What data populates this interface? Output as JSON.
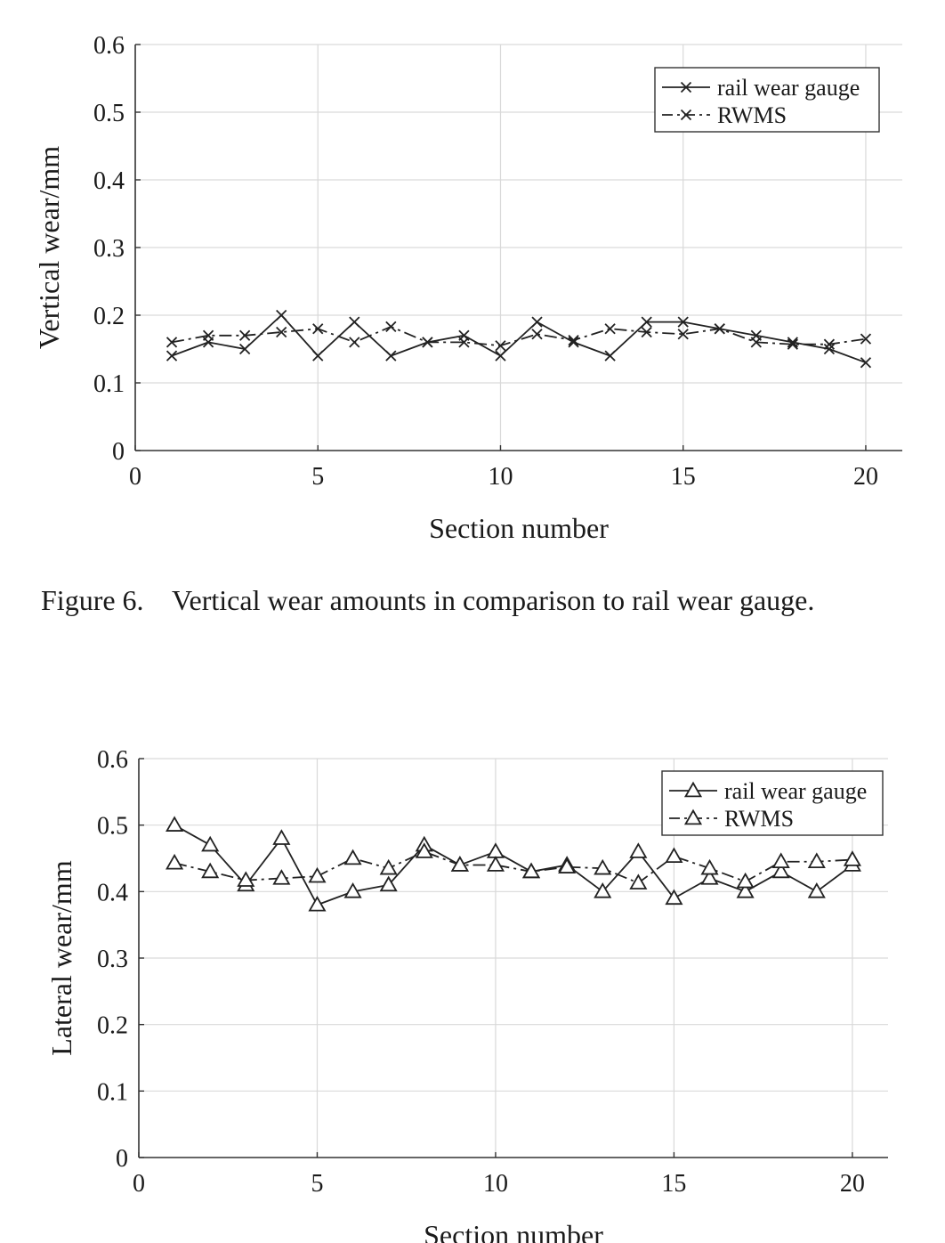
{
  "figure_caption": "Figure 6.    Vertical wear amounts in comparison to rail wear gauge.",
  "colors": {
    "line": "#222222",
    "grid": "#d9d9d9",
    "axis": "#333333"
  },
  "chart_data": [
    {
      "type": "line",
      "title": "",
      "xlabel": "Section number",
      "ylabel": "Vertical wear/mm",
      "xlim": [
        0,
        21
      ],
      "ylim": [
        0,
        0.6
      ],
      "xticks": [
        0,
        5,
        10,
        15,
        20
      ],
      "yticks": [
        0,
        0.1,
        0.2,
        0.3,
        0.4,
        0.5,
        0.6
      ],
      "ytick_labels": [
        "0",
        "0.1",
        "0.2",
        "0.3",
        "0.4",
        "0.5",
        "0.6"
      ],
      "grid": true,
      "legend_position": "top-right",
      "x": [
        1,
        2,
        3,
        4,
        5,
        6,
        7,
        8,
        9,
        10,
        11,
        12,
        13,
        14,
        15,
        16,
        17,
        18,
        19,
        20
      ],
      "series": [
        {
          "name": "rail wear gauge",
          "line_style": "solid",
          "marker": "x",
          "values": [
            0.14,
            0.16,
            0.15,
            0.2,
            0.14,
            0.19,
            0.14,
            0.16,
            0.17,
            0.14,
            0.19,
            0.16,
            0.14,
            0.19,
            0.19,
            0.18,
            0.17,
            0.16,
            0.15,
            0.13
          ]
        },
        {
          "name": "RWMS",
          "line_style": "dashdot",
          "marker": "x",
          "values": [
            0.16,
            0.17,
            0.17,
            0.175,
            0.18,
            0.16,
            0.183,
            0.16,
            0.16,
            0.155,
            0.172,
            0.163,
            0.18,
            0.175,
            0.172,
            0.18,
            0.16,
            0.157,
            0.157,
            0.165
          ]
        }
      ]
    },
    {
      "type": "line",
      "title": "",
      "xlabel": "Section number",
      "ylabel": "Lateral wear/mm",
      "xlim": [
        0,
        21
      ],
      "ylim": [
        0,
        0.6
      ],
      "xticks": [
        0,
        5,
        10,
        15,
        20
      ],
      "yticks": [
        0,
        0.1,
        0.2,
        0.3,
        0.4,
        0.5,
        0.6
      ],
      "ytick_labels": [
        "0",
        "0.1",
        "0.2",
        "0.3",
        "0.4",
        "0.5",
        "0.6"
      ],
      "grid": true,
      "legend_position": "top-right",
      "x": [
        1,
        2,
        3,
        4,
        5,
        6,
        7,
        8,
        9,
        10,
        11,
        12,
        13,
        14,
        15,
        16,
        17,
        18,
        19,
        20
      ],
      "series": [
        {
          "name": "rail wear gauge",
          "line_style": "solid",
          "marker": "triangle",
          "values": [
            0.5,
            0.47,
            0.41,
            0.48,
            0.38,
            0.4,
            0.41,
            0.47,
            0.44,
            0.46,
            0.43,
            0.44,
            0.4,
            0.46,
            0.39,
            0.42,
            0.4,
            0.43,
            0.4,
            0.44
          ]
        },
        {
          "name": "RWMS",
          "line_style": "dashdot",
          "marker": "triangle",
          "values": [
            0.443,
            0.43,
            0.417,
            0.42,
            0.423,
            0.45,
            0.435,
            0.46,
            0.44,
            0.44,
            0.43,
            0.437,
            0.435,
            0.413,
            0.453,
            0.435,
            0.415,
            0.445,
            0.445,
            0.448
          ]
        }
      ]
    }
  ]
}
